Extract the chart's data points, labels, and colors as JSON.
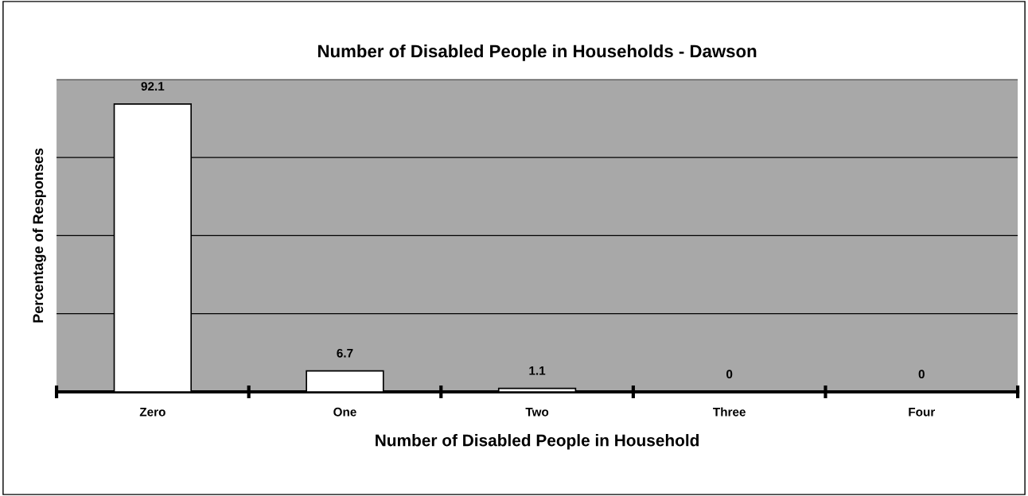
{
  "chart_data": {
    "type": "bar",
    "title": "Number of Disabled People in Households - Dawson",
    "xlabel": "Number of Disabled People in Household",
    "ylabel": "Percentage of Responses",
    "categories": [
      "Zero",
      "One",
      "Two",
      "Three",
      "Four"
    ],
    "values": [
      92.1,
      6.7,
      1.1,
      0,
      0
    ],
    "color": "#ffffff",
    "data_labels": true,
    "ylim": [
      0,
      100
    ],
    "yticks": [
      {
        "value": 0,
        "label": null
      },
      {
        "value": 25,
        "label": null
      },
      {
        "value": 50,
        "label": null
      },
      {
        "value": 75,
        "label": null
      },
      {
        "value": 100,
        "label": null
      }
    ],
    "grid": "y",
    "tick_labels": "x"
  }
}
